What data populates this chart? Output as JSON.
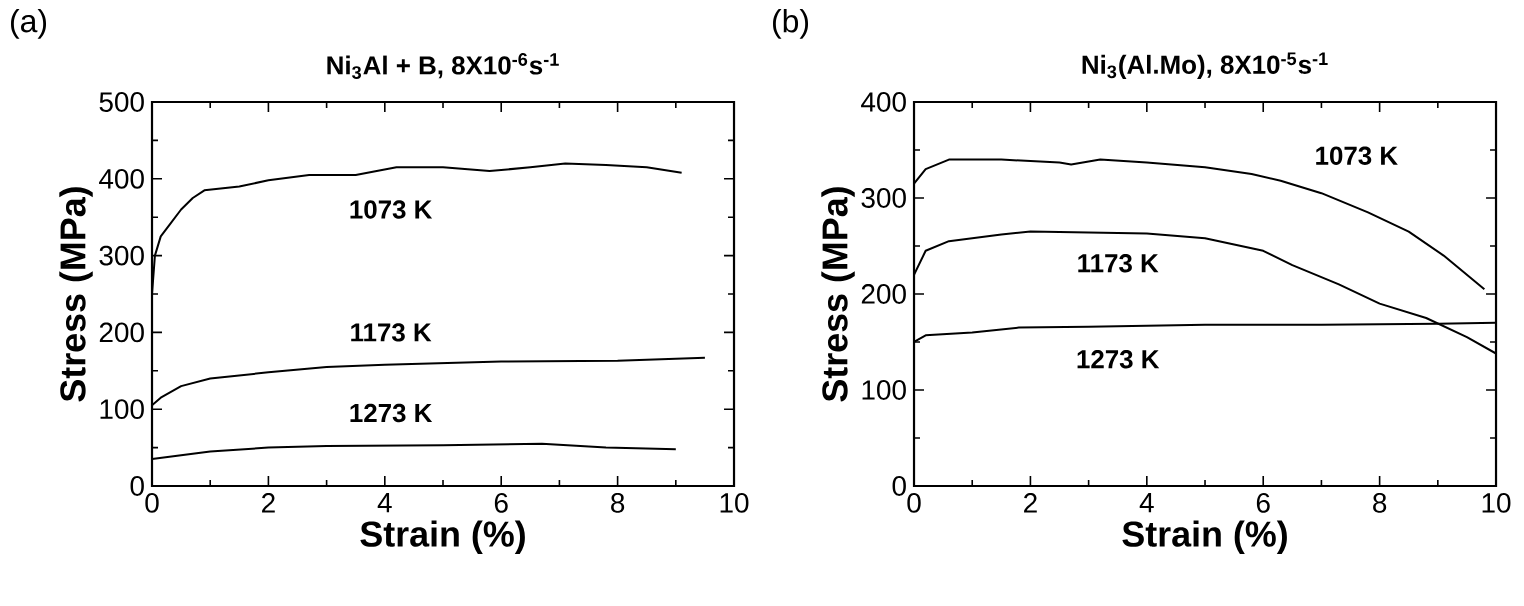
{
  "chart_data": [
    {
      "type": "line",
      "title": "Ni$_{3}$Al + B,  8X10$^{-6}$s$^{-1}$",
      "xlabel": "Strain (%)",
      "ylabel": "Stress (MPa)",
      "annotations": [
        "(a)"
      ],
      "xlim": [
        0,
        10
      ],
      "ylim": [
        0,
        500
      ],
      "xticks": [
        0,
        2,
        4,
        6,
        8,
        10
      ],
      "yticks": [
        0,
        100,
        200,
        300,
        400,
        500
      ],
      "series": [
        {
          "name": "1073 K",
          "color": "#000000",
          "x": [
            0,
            0.05,
            0.15,
            0.3,
            0.5,
            0.7,
            0.9,
            1.5,
            2,
            2.7,
            3.5,
            4.2,
            5,
            5.8,
            6.5,
            7.1,
            7.8,
            8.5,
            9.1
          ],
          "values": [
            250,
            300,
            325,
            340,
            360,
            375,
            385,
            390,
            398,
            405,
            405,
            415,
            415,
            410,
            415,
            420,
            418,
            415,
            408
          ]
        },
        {
          "name": "1173 K",
          "color": "#000000",
          "x": [
            0,
            0.15,
            0.5,
            1,
            2,
            3,
            4,
            6,
            8,
            9.5
          ],
          "values": [
            105,
            115,
            130,
            140,
            148,
            155,
            158,
            162,
            163,
            167
          ]
        },
        {
          "name": "1273 K",
          "color": "#000000",
          "x": [
            0,
            0.5,
            1,
            2,
            3,
            5,
            6.7,
            7.8,
            9
          ],
          "values": [
            35,
            40,
            45,
            50,
            52,
            53,
            55,
            50,
            48
          ]
        }
      ]
    },
    {
      "type": "line",
      "title": "Ni$_{3}$(Al.Mo),  8X10$^{-5}$s$^{-1}$",
      "xlabel": "Strain (%)",
      "ylabel": "Stress (MPa)",
      "annotations": [
        "(b)"
      ],
      "xlim": [
        0,
        10
      ],
      "ylim": [
        0,
        400
      ],
      "xticks": [
        0,
        2,
        4,
        6,
        8,
        10
      ],
      "yticks": [
        0,
        100,
        200,
        300,
        400
      ],
      "series": [
        {
          "name": "1073 K",
          "color": "#000000",
          "x": [
            0,
            0.2,
            0.6,
            1.5,
            2.5,
            2.7,
            3.2,
            4,
            5,
            5.8,
            6.3,
            7,
            7.8,
            8.5,
            9.1,
            9.8
          ],
          "values": [
            315,
            330,
            340,
            340,
            337,
            335,
            340,
            337,
            332,
            325,
            318,
            305,
            285,
            265,
            240,
            205
          ]
        },
        {
          "name": "1173 K",
          "color": "#000000",
          "x": [
            0,
            0.2,
            0.6,
            1.5,
            2,
            4,
            5,
            6,
            6.5,
            7.3,
            8,
            8.8,
            9.5,
            10
          ],
          "values": [
            220,
            245,
            255,
            262,
            265,
            263,
            258,
            245,
            230,
            210,
            190,
            175,
            155,
            138
          ]
        },
        {
          "name": "1273 K",
          "color": "#000000",
          "x": [
            0,
            0.2,
            1,
            1.8,
            3,
            5,
            7,
            9,
            10
          ],
          "values": [
            150,
            157,
            160,
            165,
            166,
            168,
            168,
            169,
            170
          ]
        }
      ]
    }
  ]
}
